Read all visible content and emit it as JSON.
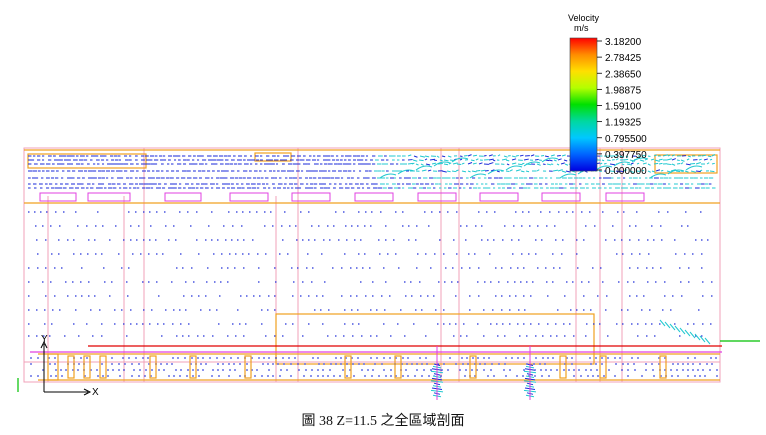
{
  "figure": {
    "caption": "圖 38 Z=11.5 之全區域剖面"
  },
  "legend": {
    "title_line1": "Velocity",
    "title_line2": "m/s",
    "ticks": [
      "3.18200",
      "2.78425",
      "2.38650",
      "1.98875",
      "1.59100",
      "1.19325",
      "0.795500",
      "0.397750",
      "0.000000"
    ],
    "colors": [
      "#ff0000",
      "#ff8c00",
      "#ffe000",
      "#b4ff00",
      "#00e000",
      "#00d8a0",
      "#00c8ff",
      "#0064ff",
      "#0000e0"
    ]
  },
  "axes": {
    "x_label": "X",
    "y_label": "Y"
  },
  "colors": {
    "outline": "#f0a0b8",
    "orange": "#f0a020",
    "red_line": "#e00000",
    "magenta": "#e040e0",
    "green": "#00c000",
    "vector_blue": "#1a2ad8",
    "vector_cyan": "#20c8d0"
  }
}
